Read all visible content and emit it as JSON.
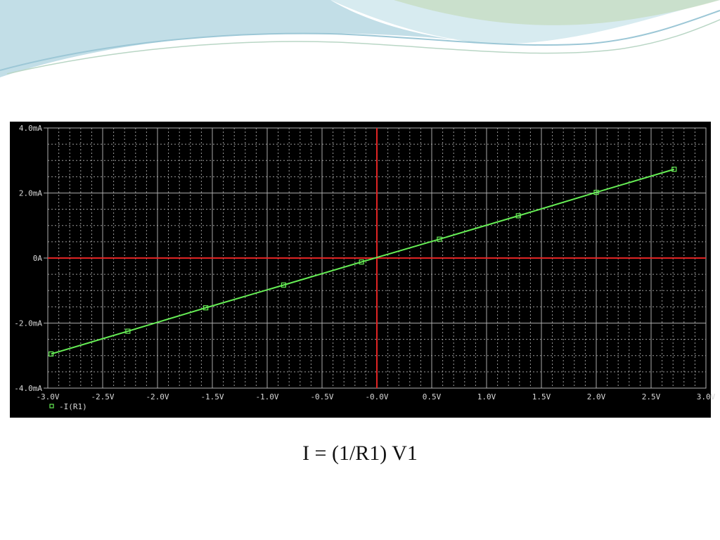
{
  "chart_data": {
    "type": "line",
    "xlim": [
      -3,
      3
    ],
    "xticks": [
      {
        "value": -3,
        "label": "-3.0V"
      },
      {
        "value": -2.5,
        "label": "-2.5V"
      },
      {
        "value": -2,
        "label": "-2.0V"
      },
      {
        "value": -1.5,
        "label": "-1.5V"
      },
      {
        "value": -1,
        "label": "-1.0V"
      },
      {
        "value": -0.5,
        "label": "-0.5V"
      },
      {
        "value": 0,
        "label": "-0.0V"
      },
      {
        "value": 0.5,
        "label": "0.5V"
      },
      {
        "value": 1,
        "label": "1.0V"
      },
      {
        "value": 1.5,
        "label": "1.5V"
      },
      {
        "value": 2,
        "label": "2.0V"
      },
      {
        "value": 2.5,
        "label": "2.5V"
      },
      {
        "value": 3,
        "label": "3.0V"
      }
    ],
    "ylim": [
      -4,
      4
    ],
    "yticks": [
      {
        "value": -4,
        "label": "-4.0mA"
      },
      {
        "value": -2,
        "label": "-2.0mA"
      },
      {
        "value": 0,
        "label": "0A"
      },
      {
        "value": 2,
        "label": "2.0mA"
      },
      {
        "value": 4,
        "label": "4.0mA"
      }
    ],
    "grid": true,
    "zero_line_color": "#e02424",
    "series": [
      {
        "name": "-I(R1)",
        "color": "#66ee55",
        "x": [
          -2.97,
          -2.27,
          -1.56,
          -0.85,
          -0.14,
          0.57,
          1.29,
          2.0,
          2.71
        ],
        "values": [
          -2.95,
          -2.25,
          -1.53,
          -0.83,
          -0.12,
          0.58,
          1.3,
          2.02,
          2.73
        ]
      }
    ]
  },
  "caption": "I = (1/R1) V1"
}
